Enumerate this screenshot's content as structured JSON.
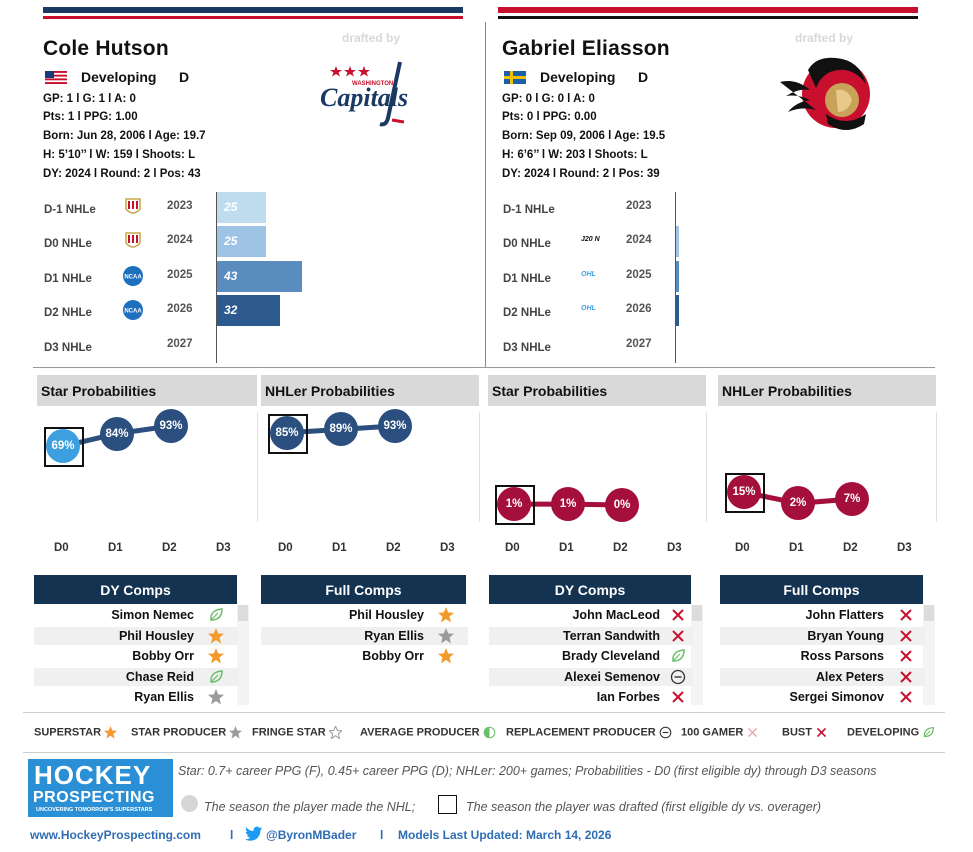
{
  "players": [
    {
      "name": "Cole Hutson",
      "drafted_by_label": "drafted by",
      "team_logo": "washington-capitals-logo",
      "team_logo_text_top": "WASHINGTON",
      "team_logo_text": "Capitals",
      "flag": "usa-flag-icon",
      "status": "Developing",
      "position": "D",
      "stats1": "GP: 1 l G: 1 l A: 0",
      "stats2": "Pts: 1 l PPG: 1.00",
      "born": "Born: Jun 28, 2006 l Age: 19.7",
      "size": "H: 5’10’’ l W: 159 l Shoots: L",
      "draft": "DY: 2024 l Round: 2 l Pos: 43",
      "accent": "#1a3a64",
      "seasons": [
        {
          "label": "D-1 NHLe",
          "league_icon": "usntdp-icon",
          "year": "2023",
          "value": 25,
          "value_label": "25",
          "color": "#bfdcef"
        },
        {
          "label": "D0 NHLe",
          "league_icon": "usntdp-icon",
          "year": "2024",
          "value": 25,
          "value_label": "25",
          "color": "#9fc3e4"
        },
        {
          "label": "D1 NHLe",
          "league_icon": "ncaa-icon",
          "year": "2025",
          "value": 43,
          "value_label": "43",
          "color": "#5b8cbf"
        },
        {
          "label": "D2 NHLe",
          "league_icon": "ncaa-icon",
          "year": "2026",
          "value": 32,
          "value_label": "32",
          "color": "#2d5a8e"
        },
        {
          "label": "D3 NHLe",
          "league_icon": "",
          "year": "2027",
          "value": 0,
          "value_label": "",
          "color": "#2d5a8e"
        }
      ],
      "star_probabilities": {
        "title": "Star Probabilities",
        "points": [
          {
            "x": "D0",
            "value": 69,
            "label": "69%"
          },
          {
            "x": "D1",
            "value": 84,
            "label": "84%"
          },
          {
            "x": "D2",
            "value": 93,
            "label": "93%"
          }
        ],
        "x_labels": [
          "D0",
          "D1",
          "D2",
          "D3"
        ],
        "color": "#2b4f7e",
        "highlight_color": "#3b9fe0"
      },
      "nhler_probabilities": {
        "title": "NHLer Probabilities",
        "points": [
          {
            "x": "D0",
            "value": 85,
            "label": "85%"
          },
          {
            "x": "D1",
            "value": 89,
            "label": "89%"
          },
          {
            "x": "D2",
            "value": 93,
            "label": "93%"
          }
        ],
        "x_labels": [
          "D0",
          "D1",
          "D2",
          "D3"
        ],
        "color": "#2b4f7e",
        "highlight_color": "#2b4f7e"
      },
      "dy_comps": {
        "title": "DY Comps",
        "rows": [
          {
            "name": "Simon Nemec",
            "icon": "developing-leaf-icon"
          },
          {
            "name": "Phil Housley",
            "icon": "superstar-star-icon"
          },
          {
            "name": "Bobby Orr",
            "icon": "superstar-star-icon"
          },
          {
            "name": "Chase Reid",
            "icon": "developing-leaf-icon"
          },
          {
            "name": "Ryan Ellis",
            "icon": "star-producer-star-icon"
          }
        ]
      },
      "full_comps": {
        "title": "Full Comps",
        "rows": [
          {
            "name": "Phil Housley",
            "icon": "superstar-star-icon"
          },
          {
            "name": "Ryan Ellis",
            "icon": "star-producer-star-icon"
          },
          {
            "name": "Bobby Orr",
            "icon": "superstar-star-icon"
          }
        ]
      }
    },
    {
      "name": "Gabriel Eliasson",
      "drafted_by_label": "drafted by",
      "team_logo": "ottawa-senators-logo",
      "team_logo_text_top": "",
      "team_logo_text": "",
      "flag": "sweden-flag-icon",
      "status": "Developing",
      "position": "D",
      "stats1": "GP: 0 l G: 0 l A: 0",
      "stats2": "Pts: 0 l PPG: 0.00",
      "born": "Born: Sep 09, 2006 l Age: 19.5",
      "size": "H: 6’6’’ l W: 203 l Shoots: L",
      "draft": "DY: 2024 l Round: 2 l Pos: 39",
      "accent": "#b0103a",
      "seasons": [
        {
          "label": "D-1 NHLe",
          "league_icon": "",
          "year": "2023",
          "value": 0,
          "value_label": "",
          "color": "#bfdcef"
        },
        {
          "label": "D0 NHLe",
          "league_icon": "j20-icon",
          "league_text": "J20 N",
          "year": "2024",
          "value": 1,
          "value_label": "",
          "color": "#9fc3e4"
        },
        {
          "label": "D1 NHLe",
          "league_icon": "ohl-icon",
          "league_text": "OHL",
          "year": "2025",
          "value": 1,
          "value_label": "",
          "color": "#5b8cbf"
        },
        {
          "label": "D2 NHLe",
          "league_icon": "ohl-icon",
          "league_text": "OHL",
          "year": "2026",
          "value": 1,
          "value_label": "",
          "color": "#2d5a8e"
        },
        {
          "label": "D3 NHLe",
          "league_icon": "",
          "year": "2027",
          "value": 0,
          "value_label": "",
          "color": "#2d5a8e"
        }
      ],
      "star_probabilities": {
        "title": "Star Probabilities",
        "points": [
          {
            "x": "D0",
            "value": 1,
            "label": "1%"
          },
          {
            "x": "D1",
            "value": 1,
            "label": "1%"
          },
          {
            "x": "D2",
            "value": 0,
            "label": "0%"
          }
        ],
        "x_labels": [
          "D0",
          "D1",
          "D2",
          "D3"
        ],
        "color": "#a50f3c",
        "highlight_color": "#a50f3c"
      },
      "nhler_probabilities": {
        "title": "NHLer Probabilities",
        "points": [
          {
            "x": "D0",
            "value": 15,
            "label": "15%"
          },
          {
            "x": "D1",
            "value": 2,
            "label": "2%"
          },
          {
            "x": "D2",
            "value": 7,
            "label": "7%"
          }
        ],
        "x_labels": [
          "D0",
          "D1",
          "D2",
          "D3"
        ],
        "color": "#a50f3c",
        "highlight_color": "#a50f3c"
      },
      "dy_comps": {
        "title": "DY Comps",
        "rows": [
          {
            "name": "John MacLeod",
            "icon": "bust-x-icon"
          },
          {
            "name": "Terran Sandwith",
            "icon": "bust-x-icon"
          },
          {
            "name": "Brady Cleveland",
            "icon": "developing-leaf-icon"
          },
          {
            "name": "Alexei Semenov",
            "icon": "replacement-circle-icon"
          },
          {
            "name": "Ian Forbes",
            "icon": "bust-x-icon"
          }
        ]
      },
      "full_comps": {
        "title": "Full Comps",
        "rows": [
          {
            "name": "John Flatters",
            "icon": "bust-x-icon"
          },
          {
            "name": "Bryan Young",
            "icon": "bust-x-icon"
          },
          {
            "name": "Ross Parsons",
            "icon": "bust-x-icon"
          },
          {
            "name": "Alex Peters",
            "icon": "bust-x-icon"
          },
          {
            "name": "Sergei Simonov",
            "icon": "bust-x-icon"
          }
        ]
      }
    }
  ],
  "legend": [
    {
      "label": "SUPERSTAR",
      "icon": "superstar-star-icon"
    },
    {
      "label": "STAR PRODUCER",
      "icon": "star-producer-star-icon"
    },
    {
      "label": "FRINGE STAR",
      "icon": "fringe-star-icon"
    },
    {
      "label": "AVERAGE PRODUCER",
      "icon": "average-producer-half-circle-icon"
    },
    {
      "label": "REPLACEMENT PRODUCER",
      "icon": "replacement-circle-icon"
    },
    {
      "label": "100 GAMER",
      "icon": "100-gamer-x-icon"
    },
    {
      "label": "BUST",
      "icon": "bust-x-icon"
    },
    {
      "label": "DEVELOPING",
      "icon": "developing-leaf-icon"
    }
  ],
  "footer": {
    "logo_line1": "HOCKEY",
    "logo_line2": "PROSPECTING",
    "logo_tagline": "UNCOVERING TOMORROW'S SUPERSTARS",
    "note1": "Star: 0.7+ career PPG (F), 0.45+ career PPG (D); NHLer: 200+ games; Probabilities - D0 (first eligible dy) through D3 seasons",
    "note2": "The season the player made the NHL;",
    "note3": "The season the player was drafted (first eligible dy vs. overager)",
    "website": "www.HockeyProspecting.com",
    "separator": "l",
    "twitter": "@ByronMBader",
    "updated": "Models Last Updated: March 14, 2026"
  }
}
